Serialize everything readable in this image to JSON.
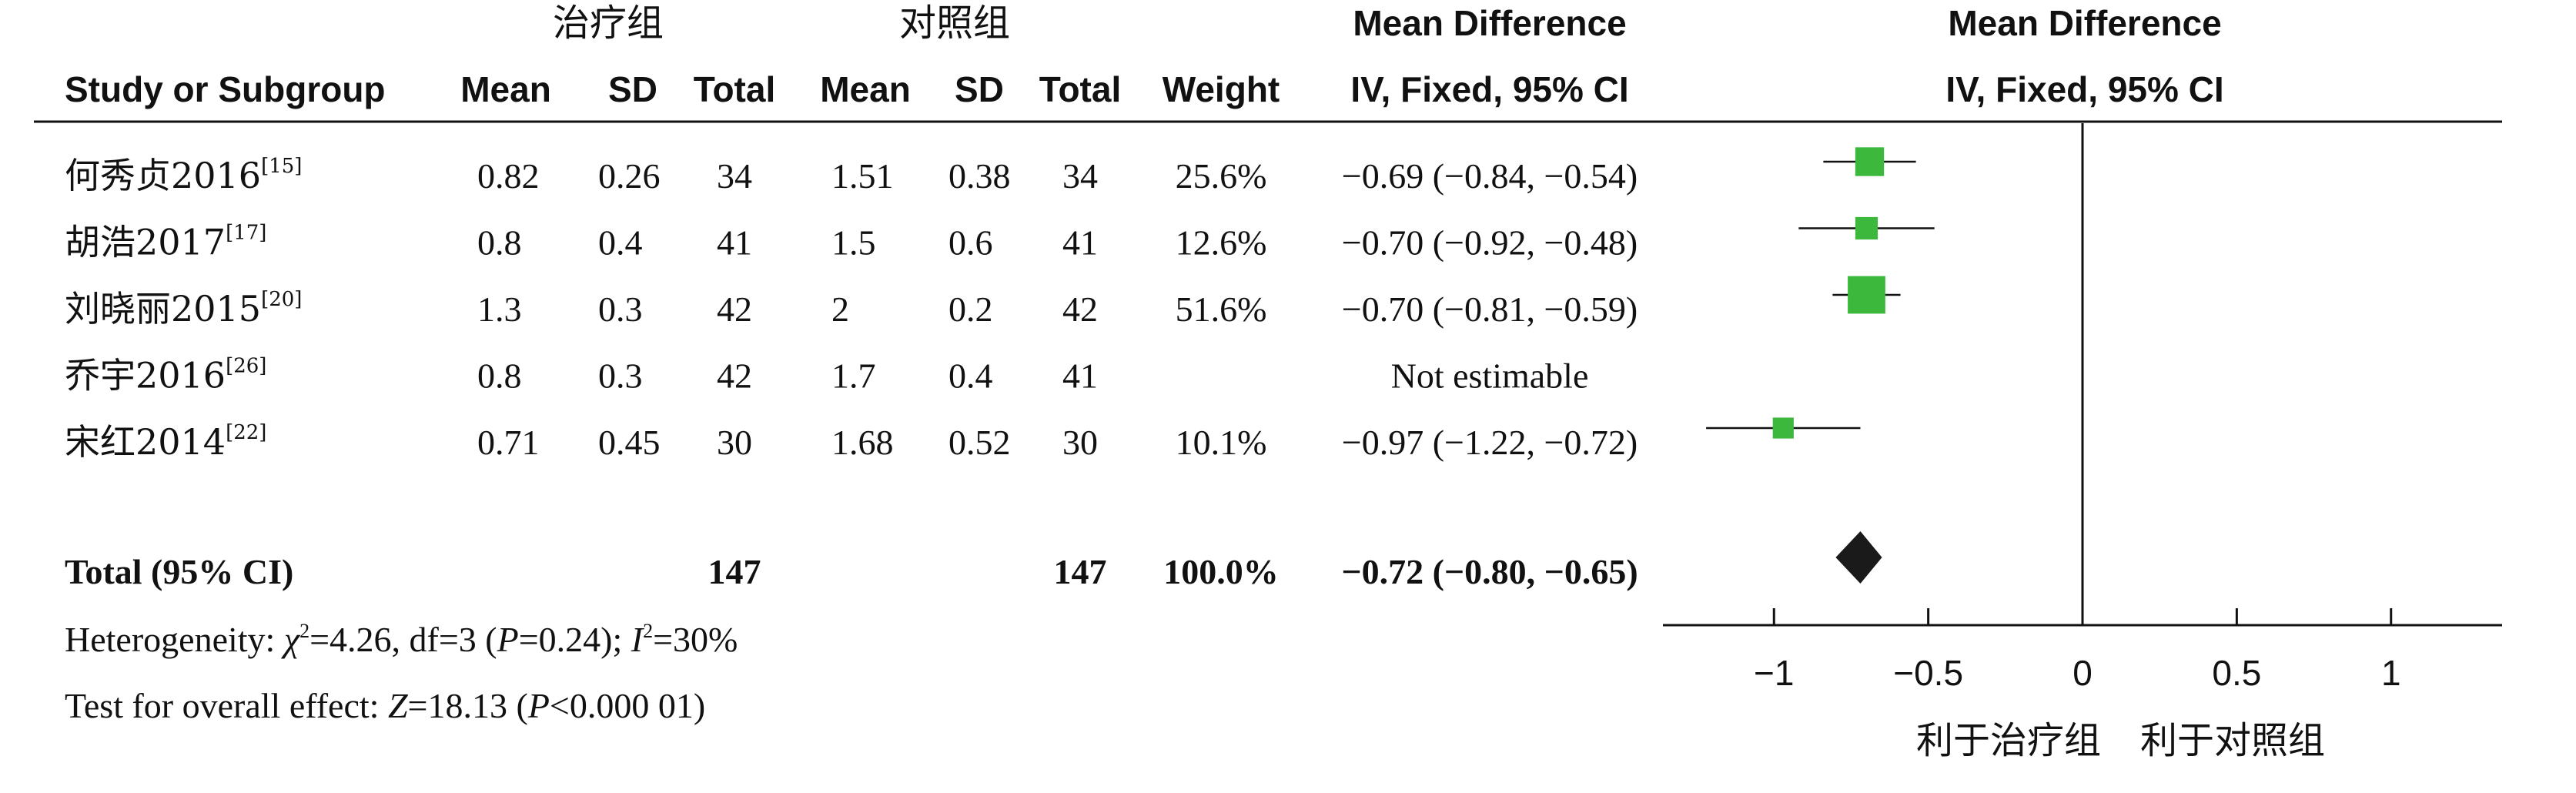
{
  "header": {
    "group_treatment": "治疗组",
    "group_control": "对照组",
    "col_study": "Study or Subgroup",
    "col_mean": "Mean",
    "col_sd": "SD",
    "col_total": "Total",
    "col_weight": "Weight",
    "col_md_title": "Mean Difference",
    "col_md_method": "IV, Fixed, 95% CI",
    "plot_md_title": "Mean Difference",
    "plot_md_method": "IV, Fixed, 95% CI"
  },
  "chart_data": {
    "type": "forest",
    "studies": [
      {
        "name": "何秀贞2016",
        "ref": "[15]",
        "t_mean": "0.82",
        "t_sd": "0.26",
        "t_total": "34",
        "c_mean": "1.51",
        "c_sd": "0.38",
        "c_total": "34",
        "weight": "25.6%",
        "ci_text": "−0.69 (−0.84, −0.54)",
        "md": -0.69,
        "lo": -0.84,
        "hi": -0.54,
        "w": 25.6
      },
      {
        "name": "胡浩2017",
        "ref": "[17]",
        "t_mean": "0.8",
        "t_sd": "0.4",
        "t_total": "41",
        "c_mean": "1.5",
        "c_sd": "0.6",
        "c_total": "41",
        "weight": "12.6%",
        "ci_text": "−0.70 (−0.92, −0.48)",
        "md": -0.7,
        "lo": -0.92,
        "hi": -0.48,
        "w": 12.6
      },
      {
        "name": "刘晓丽2015",
        "ref": "[20]",
        "t_mean": "1.3",
        "t_sd": "0.3",
        "t_total": "42",
        "c_mean": "2",
        "c_sd": "0.2",
        "c_total": "42",
        "weight": "51.6%",
        "ci_text": "−0.70 (−0.81, −0.59)",
        "md": -0.7,
        "lo": -0.81,
        "hi": -0.59,
        "w": 51.6
      },
      {
        "name": "乔宇2016",
        "ref": "[26]",
        "t_mean": "0.8",
        "t_sd": "0.3",
        "t_total": "42",
        "c_mean": "1.7",
        "c_sd": "0.4",
        "c_total": "41",
        "weight": "",
        "ci_text": "Not estimable",
        "md": null,
        "lo": null,
        "hi": null,
        "w": 0
      },
      {
        "name": "宋红2014",
        "ref": "[22]",
        "t_mean": "0.71",
        "t_sd": "0.45",
        "t_total": "30",
        "c_mean": "1.68",
        "c_sd": "0.52",
        "c_total": "30",
        "weight": "10.1%",
        "ci_text": "−0.97 (−1.22, −0.72)",
        "md": -0.97,
        "lo": -1.22,
        "hi": -0.72,
        "w": 10.1
      }
    ],
    "total": {
      "label": "Total (95% CI)",
      "t_total": "147",
      "c_total": "147",
      "weight": "100.0%",
      "ci_text": "−0.72 (−0.80, −0.65)",
      "md": -0.72,
      "lo": -0.8,
      "hi": -0.65
    },
    "heterogeneity": {
      "prefix": "Heterogeneity: ",
      "chi": "χ",
      "chi_sup": "2",
      "chi_rest": "=4.26, df=3 (",
      "p_sym": "P",
      "p_rest": "=0.24); ",
      "i_sym": "I",
      "i_sup": "2",
      "i_rest": "=30%"
    },
    "overall_effect": {
      "prefix": "Test for overall effect: ",
      "z_sym": "Z",
      "z_rest": "=18.13 (",
      "p_sym": "P",
      "p_rest": "<0.000 01)"
    },
    "axis": {
      "xlim": [
        -1.36,
        1.36
      ],
      "ticks": [
        -1,
        -0.5,
        0,
        0.5,
        1
      ],
      "tick_labels": [
        "−1",
        "−0.5",
        "0",
        "0.5",
        "1"
      ],
      "favours_left": "利于治疗组",
      "favours_right": "利于对照组"
    },
    "colors": {
      "square": "#3cb83c",
      "diamond": "#1a1a1a",
      "line": "#111111"
    }
  }
}
